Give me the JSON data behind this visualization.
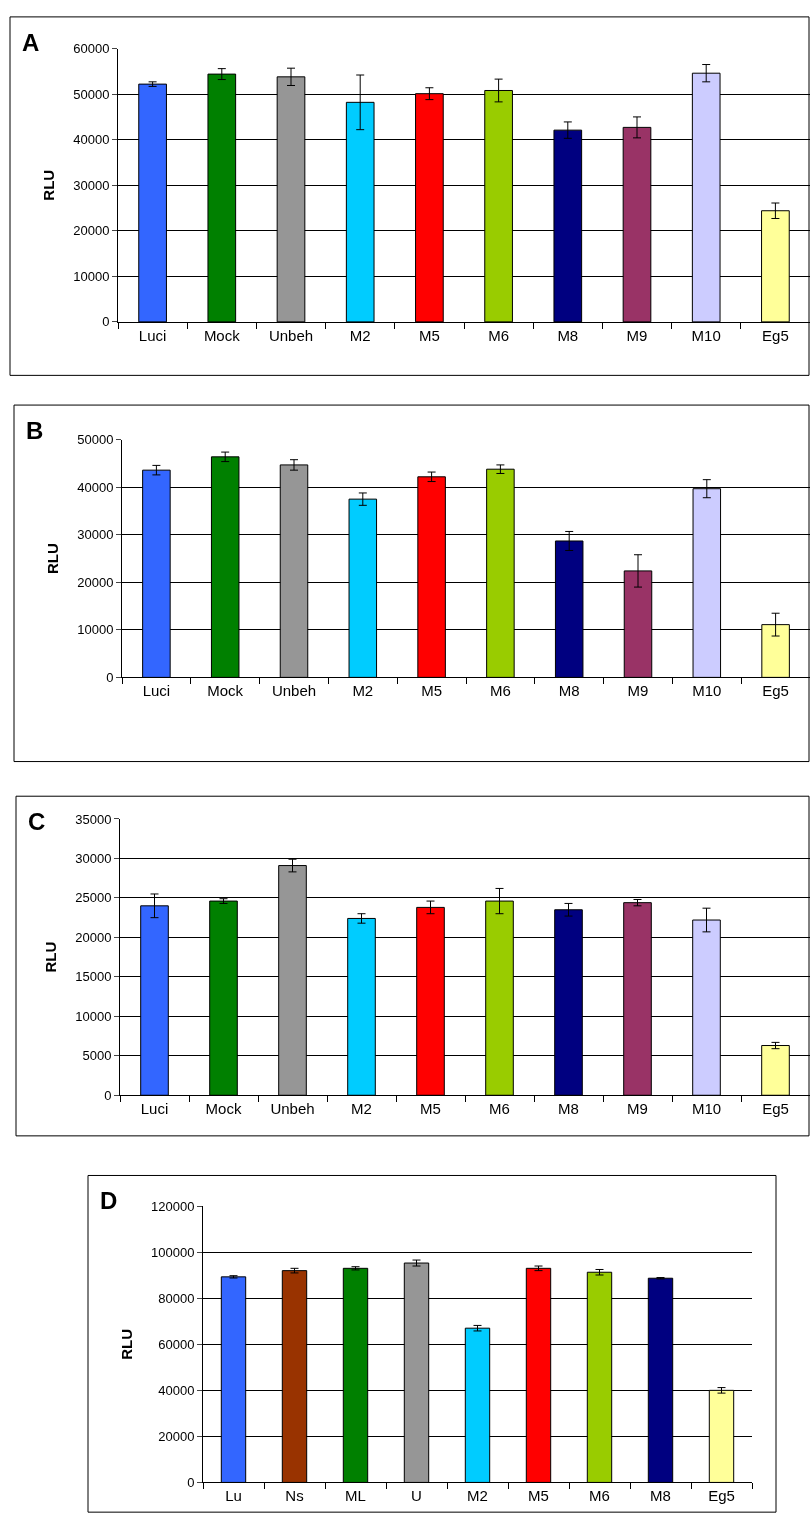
{
  "chart_data": [
    {
      "type": "bar",
      "title": "A",
      "ylabel": "RLU",
      "categories": [
        "Luci",
        "Mock",
        "Unbeh",
        "M2",
        "M5",
        "M6",
        "M8",
        "M9",
        "M10",
        "Eg5"
      ],
      "values": [
        52200,
        54400,
        53800,
        48200,
        50100,
        50800,
        42100,
        42700,
        54600,
        24400
      ],
      "errors": [
        500,
        1200,
        1900,
        6000,
        1300,
        2500,
        1800,
        2300,
        1900,
        1700
      ],
      "colors": [
        "#3366ff",
        "#008000",
        "#969696",
        "#00ccff",
        "#ff0000",
        "#99cc00",
        "#000080",
        "#993366",
        "#ccccff",
        "#ffff99"
      ],
      "ylim": [
        0,
        60000
      ],
      "yticks": [
        0,
        10000,
        20000,
        30000,
        40000,
        50000,
        60000
      ],
      "grid": "y"
    },
    {
      "type": "bar",
      "title": "B",
      "ylabel": "RLU",
      "categories": [
        "Luci",
        "Mock",
        "Unbeh",
        "M2",
        "M5",
        "M6",
        "M8",
        "M9",
        "M10",
        "Eg5"
      ],
      "values": [
        43600,
        46400,
        44700,
        37500,
        42200,
        43800,
        28700,
        22400,
        39700,
        11100
      ],
      "errors": [
        1000,
        1000,
        1100,
        1300,
        1000,
        900,
        2000,
        3400,
        1900,
        2400
      ],
      "colors": [
        "#3366ff",
        "#008000",
        "#969696",
        "#00ccff",
        "#ff0000",
        "#99cc00",
        "#000080",
        "#993366",
        "#ccccff",
        "#ffff99"
      ],
      "ylim": [
        0,
        50000
      ],
      "yticks": [
        0,
        10000,
        20000,
        30000,
        40000,
        50000
      ],
      "grid": "y"
    },
    {
      "type": "bar",
      "title": "C",
      "ylabel": "RLU",
      "categories": [
        "Luci",
        "Mock",
        "Unbeh",
        "M2",
        "M5",
        "M6",
        "M8",
        "M9",
        "M10",
        "Eg5"
      ],
      "values": [
        24000,
        24600,
        29100,
        22400,
        23800,
        24600,
        23500,
        24400,
        22200,
        6300
      ],
      "errors": [
        1500,
        300,
        800,
        600,
        800,
        1600,
        800,
        400,
        1500,
        400
      ],
      "colors": [
        "#3366ff",
        "#008000",
        "#969696",
        "#00ccff",
        "#ff0000",
        "#99cc00",
        "#000080",
        "#993366",
        "#ccccff",
        "#ffff99"
      ],
      "ylim": [
        0,
        35000
      ],
      "yticks": [
        0,
        5000,
        10000,
        15000,
        20000,
        25000,
        30000,
        35000
      ],
      "grid": "y"
    },
    {
      "type": "bar",
      "title": "D",
      "ylabel": "RLU",
      "categories": [
        "Lu",
        "Ns",
        "ML",
        "U",
        "M2",
        "M5",
        "M6",
        "M8",
        "Eg5"
      ],
      "values": [
        89300,
        92000,
        93000,
        95300,
        67000,
        93000,
        91300,
        88700,
        40000
      ],
      "errors": [
        500,
        1000,
        700,
        1300,
        1200,
        1000,
        1200,
        300,
        1200
      ],
      "colors": [
        "#3366ff",
        "#993300",
        "#008000",
        "#969696",
        "#00ccff",
        "#ff0000",
        "#99cc00",
        "#000080",
        "#ffff99"
      ],
      "ylim": [
        0,
        120000
      ],
      "yticks": [
        0,
        20000,
        40000,
        60000,
        80000,
        100000,
        120000
      ],
      "grid": "y"
    }
  ]
}
